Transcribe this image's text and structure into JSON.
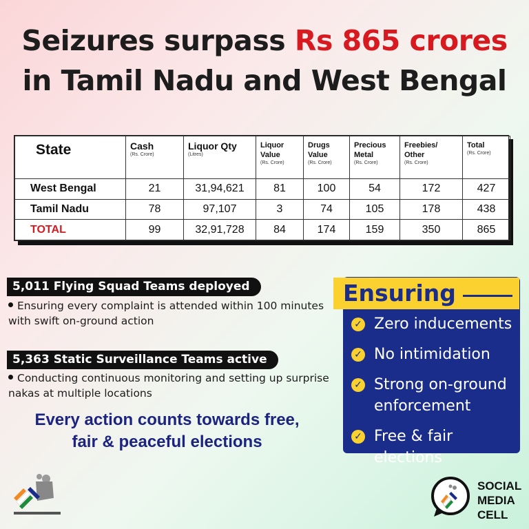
{
  "headline": {
    "part1": "Seizures surpass ",
    "highlight": "Rs 865 crores",
    "line2": "in Tamil Nadu and West Bengal"
  },
  "table": {
    "headers": [
      {
        "main": "State",
        "sub": ""
      },
      {
        "main": "Cash",
        "sub": "(Rs. Crore)"
      },
      {
        "main": "Liquor Qty",
        "sub": "(Litres)"
      },
      {
        "main": "Liquor Value",
        "sub": "(Rs. Crore)"
      },
      {
        "main": "Drugs Value",
        "sub": "(Rs. Crore)"
      },
      {
        "main": "Precious Metal",
        "sub": "(Rs. Crore)"
      },
      {
        "main": "Freebies/ Other",
        "sub": "(Rs. Crore)"
      },
      {
        "main": "Total",
        "sub": "(Rs. Crore)"
      }
    ],
    "rows": [
      {
        "state": "West Bengal",
        "cash": "21",
        "liquor_qty": "31,94,621",
        "liquor_value": "81",
        "drugs": "100",
        "metal": "54",
        "freebies": "172",
        "total": "427"
      },
      {
        "state": "Tamil Nadu",
        "cash": "78",
        "liquor_qty": "97,107",
        "liquor_value": "3",
        "drugs": "74",
        "metal": "105",
        "freebies": "178",
        "total": "438"
      },
      {
        "state": "TOTAL",
        "cash": "99",
        "liquor_qty": "32,91,728",
        "liquor_value": "84",
        "drugs": "174",
        "metal": "159",
        "freebies": "350",
        "total": "865"
      }
    ]
  },
  "flying_squad": {
    "title": "5,011 Flying Squad Teams deployed",
    "bullet": "Ensuring every complaint is attended within 100 minutes with swift on-ground action"
  },
  "static_surveillance": {
    "title": "5,363 Static Surveillance Teams active",
    "bullet": "Conducting continuous monitoring and setting up surprise nakas at multiple locations"
  },
  "tagline": {
    "line1": "Every action counts towards free,",
    "line2": "fair & peaceful elections"
  },
  "ensuring": {
    "title": "Ensuring",
    "items": [
      "Zero inducements",
      "No intimidation",
      "Strong on-ground enforcement",
      "Free & fair elections"
    ]
  },
  "logos": {
    "smc_line1": "SOCIAL",
    "smc_line2": "MEDIA",
    "smc_line3": "CELL",
    "eci_icon": "eci-logo-icon"
  },
  "colors": {
    "accent_red": "#d71920",
    "navy": "#1b2d8a",
    "yellow": "#fbd12f",
    "tagline_blue": "#1c2480"
  }
}
